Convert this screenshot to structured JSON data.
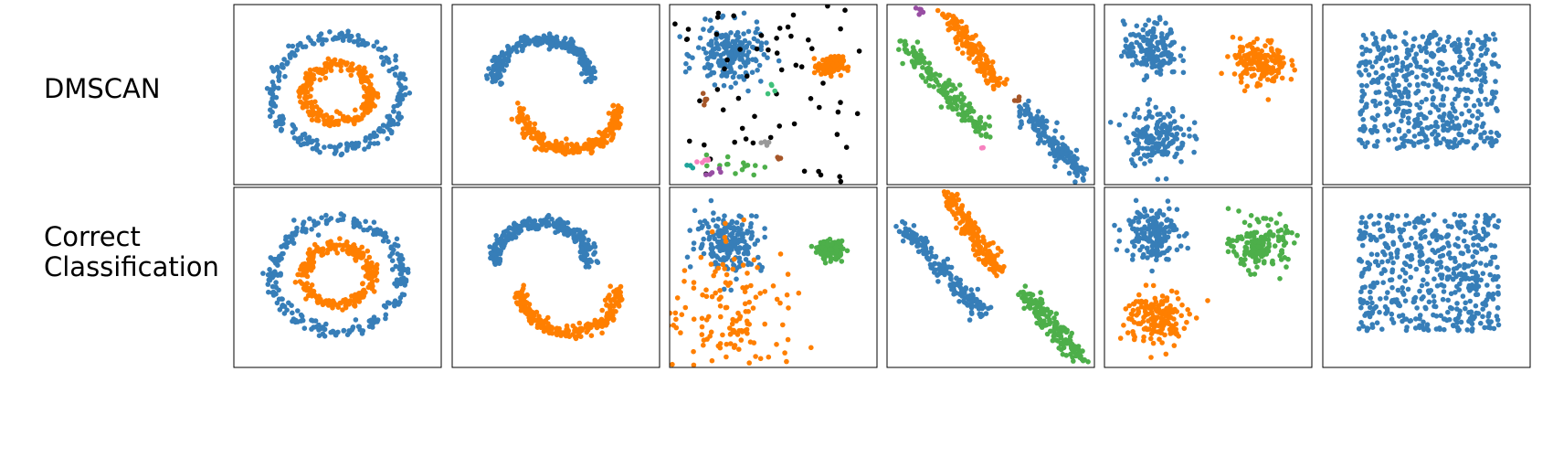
{
  "row_labels": {
    "top": "DMSCAN",
    "bottom_line1": "Correct",
    "bottom_line2": "Classification"
  },
  "colors": {
    "blue": "#377eb8",
    "orange": "#ff7f00",
    "green": "#4daf4a",
    "pink": "#f781bf",
    "brown": "#a65628",
    "purple": "#984ea3",
    "gray": "#999999",
    "teal": "#1fa39a",
    "mint": "#3fc07a",
    "noise": "#000000"
  },
  "chart_data": [
    {
      "type": "scatter",
      "row": "DMSCAN",
      "dataset": "circles",
      "groups": [
        {
          "name": "",
          "color": "#377eb8",
          "shape": "ring",
          "n": 250,
          "cx": 0,
          "cy": 0.02,
          "rx": 0.62,
          "ry": 0.62,
          "noise": 0.035
        },
        {
          "name": "",
          "color": "#ff7f00",
          "shape": "ring",
          "n": 250,
          "cx": 0,
          "cy": 0.02,
          "rx": 0.32,
          "ry": 0.32,
          "noise": 0.035
        }
      ]
    },
    {
      "type": "scatter",
      "row": "DMSCAN",
      "dataset": "moons",
      "groups": [
        {
          "name": "",
          "color": "#377eb8",
          "shape": "arc",
          "n": 250,
          "cx": -0.13,
          "cy": 0.15,
          "r": 0.46,
          "a0": 0,
          "a1": 180,
          "noise": 0.035
        },
        {
          "name": "",
          "color": "#ff7f00",
          "shape": "arc",
          "n": 250,
          "cx": 0.13,
          "cy": -0.15,
          "r": 0.46,
          "a0": 180,
          "a1": 360,
          "noise": 0.035
        }
      ]
    },
    {
      "type": "scatter",
      "row": "DMSCAN",
      "dataset": "varied",
      "groups": [
        {
          "name": "",
          "color": "#377eb8",
          "shape": "blob",
          "n": 190,
          "cx": -0.42,
          "cy": 0.44,
          "sx": 0.16,
          "sy": 0.16
        },
        {
          "name": "",
          "color": "#ff7f00",
          "shape": "blob",
          "n": 140,
          "cx": 0.55,
          "cy": 0.32,
          "sx": 0.06,
          "sy": 0.05
        },
        {
          "name": "",
          "color": "#000000",
          "shape": "uniform",
          "n": 60,
          "x0": -1,
          "x1": 0.85,
          "y0": -1,
          "y1": 1
        },
        {
          "name": "",
          "color": "#a65628",
          "shape": "blob",
          "n": 5,
          "cx": -0.65,
          "cy": -0.05,
          "sx": 0.03,
          "sy": 0.03
        },
        {
          "name": "",
          "color": "#4daf4a",
          "shape": "blob",
          "n": 14,
          "cx": -0.35,
          "cy": -0.78,
          "sx": 0.12,
          "sy": 0.06
        },
        {
          "name": "",
          "color": "#f781bf",
          "shape": "blob",
          "n": 6,
          "cx": -0.68,
          "cy": -0.72,
          "sx": 0.04,
          "sy": 0.02
        },
        {
          "name": "",
          "color": "#984ea3",
          "shape": "blob",
          "n": 5,
          "cx": -0.55,
          "cy": -0.86,
          "sx": 0.03,
          "sy": 0.02
        },
        {
          "name": "",
          "color": "#999999",
          "shape": "blob",
          "n": 4,
          "cx": -0.08,
          "cy": -0.55,
          "sx": 0.03,
          "sy": 0.02
        },
        {
          "name": "",
          "color": "#1fa39a",
          "shape": "blob",
          "n": 3,
          "cx": -0.8,
          "cy": -0.8,
          "sx": 0.02,
          "sy": 0.02
        },
        {
          "name": "",
          "color": "#3fc07a",
          "shape": "blob",
          "n": 4,
          "cx": -0.02,
          "cy": 0.05,
          "sx": 0.02,
          "sy": 0.04
        },
        {
          "name": "",
          "color": "#a65628",
          "shape": "blob",
          "n": 3,
          "cx": 0.05,
          "cy": -0.7,
          "sx": 0.02,
          "sy": 0.02
        }
      ]
    },
    {
      "type": "scatter",
      "row": "DMSCAN",
      "dataset": "aniso",
      "groups": [
        {
          "name": "",
          "color": "#ff7f00",
          "shape": "line",
          "n": 160,
          "x0": -0.42,
          "y0": 0.9,
          "x1": 0.08,
          "y1": 0.08,
          "w": 0.05
        },
        {
          "name": "",
          "color": "#4daf4a",
          "shape": "line",
          "n": 160,
          "x0": -0.85,
          "y0": 0.55,
          "x1": -0.05,
          "y1": -0.42,
          "w": 0.05
        },
        {
          "name": "",
          "color": "#377eb8",
          "shape": "line",
          "n": 160,
          "x0": 0.3,
          "y0": -0.15,
          "x1": 0.88,
          "y1": -0.9,
          "w": 0.05
        },
        {
          "name": "",
          "color": "#984ea3",
          "shape": "blob",
          "n": 6,
          "cx": -0.67,
          "cy": 0.92,
          "sx": 0.03,
          "sy": 0.03
        },
        {
          "name": "",
          "color": "#a65628",
          "shape": "blob",
          "n": 5,
          "cx": 0.25,
          "cy": -0.05,
          "sx": 0.03,
          "sy": 0.02
        },
        {
          "name": "",
          "color": "#f781bf",
          "shape": "blob",
          "n": 2,
          "cx": -0.08,
          "cy": -0.6,
          "sx": 0.01,
          "sy": 0.01
        }
      ]
    },
    {
      "type": "scatter",
      "row": "DMSCAN",
      "dataset": "blobs",
      "groups": [
        {
          "name": "",
          "color": "#377eb8",
          "shape": "blob",
          "n": 160,
          "cx": -0.55,
          "cy": 0.5,
          "sx": 0.13,
          "sy": 0.15
        },
        {
          "name": "",
          "color": "#377eb8",
          "shape": "blob",
          "n": 160,
          "cx": -0.5,
          "cy": -0.45,
          "sx": 0.15,
          "sy": 0.16
        },
        {
          "name": "",
          "color": "#ff7f00",
          "shape": "blob",
          "n": 160,
          "cx": 0.5,
          "cy": 0.35,
          "sx": 0.13,
          "sy": 0.13
        }
      ]
    },
    {
      "type": "scatter",
      "row": "DMSCAN",
      "dataset": "no_structure",
      "groups": [
        {
          "name": "",
          "color": "#377eb8",
          "shape": "uniform",
          "n": 500,
          "x0": -0.65,
          "x1": 0.7,
          "y0": -0.6,
          "y1": 0.7
        }
      ]
    },
    {
      "type": "scatter",
      "row": "Correct Classification",
      "dataset": "circles",
      "groups": [
        {
          "name": "",
          "color": "#377eb8",
          "shape": "ring",
          "n": 250,
          "cx": 0,
          "cy": 0.02,
          "rx": 0.62,
          "ry": 0.62,
          "noise": 0.035
        },
        {
          "name": "",
          "color": "#ff7f00",
          "shape": "ring",
          "n": 250,
          "cx": 0,
          "cy": 0.02,
          "rx": 0.32,
          "ry": 0.32,
          "noise": 0.035
        }
      ]
    },
    {
      "type": "scatter",
      "row": "Correct Classification",
      "dataset": "moons",
      "groups": [
        {
          "name": "",
          "color": "#377eb8",
          "shape": "arc",
          "n": 250,
          "cx": -0.13,
          "cy": 0.15,
          "r": 0.46,
          "a0": 0,
          "a1": 180,
          "noise": 0.035
        },
        {
          "name": "",
          "color": "#ff7f00",
          "shape": "arc",
          "n": 250,
          "cx": 0.13,
          "cy": -0.15,
          "r": 0.46,
          "a0": 180,
          "a1": 360,
          "noise": 0.035
        }
      ]
    },
    {
      "type": "scatter",
      "row": "Correct Classification",
      "dataset": "varied",
      "groups": [
        {
          "name": "",
          "color": "#377eb8",
          "shape": "blob",
          "n": 190,
          "cx": -0.42,
          "cy": 0.4,
          "sx": 0.16,
          "sy": 0.16
        },
        {
          "name": "",
          "color": "#ff7f00",
          "shape": "blob",
          "n": 140,
          "cx": -0.4,
          "cy": -0.4,
          "sx": 0.35,
          "sy": 0.38
        },
        {
          "name": "",
          "color": "#4daf4a",
          "shape": "blob",
          "n": 140,
          "cx": 0.55,
          "cy": 0.3,
          "sx": 0.06,
          "sy": 0.05
        }
      ]
    },
    {
      "type": "scatter",
      "row": "Correct Classification",
      "dataset": "aniso",
      "groups": [
        {
          "name": "",
          "color": "#ff7f00",
          "shape": "line",
          "n": 160,
          "x0": -0.42,
          "y0": 0.9,
          "x1": 0.08,
          "y1": 0.08,
          "w": 0.05
        },
        {
          "name": "",
          "color": "#377eb8",
          "shape": "line",
          "n": 160,
          "x0": -0.85,
          "y0": 0.55,
          "x1": -0.05,
          "y1": -0.42,
          "w": 0.05
        },
        {
          "name": "",
          "color": "#4daf4a",
          "shape": "line",
          "n": 160,
          "x0": 0.3,
          "y0": -0.15,
          "x1": 0.88,
          "y1": -0.9,
          "w": 0.05
        }
      ]
    },
    {
      "type": "scatter",
      "row": "Correct Classification",
      "dataset": "blobs",
      "groups": [
        {
          "name": "",
          "color": "#377eb8",
          "shape": "blob",
          "n": 160,
          "cx": -0.55,
          "cy": 0.5,
          "sx": 0.13,
          "sy": 0.15
        },
        {
          "name": "",
          "color": "#ff7f00",
          "shape": "blob",
          "n": 160,
          "cx": -0.5,
          "cy": -0.45,
          "sx": 0.15,
          "sy": 0.16
        },
        {
          "name": "",
          "color": "#4daf4a",
          "shape": "blob",
          "n": 160,
          "cx": 0.5,
          "cy": 0.35,
          "sx": 0.13,
          "sy": 0.13
        }
      ]
    },
    {
      "type": "scatter",
      "row": "Correct Classification",
      "dataset": "no_structure",
      "groups": [
        {
          "name": "",
          "color": "#377eb8",
          "shape": "uniform",
          "n": 500,
          "x0": -0.65,
          "x1": 0.7,
          "y0": -0.6,
          "y1": 0.7
        }
      ]
    }
  ]
}
